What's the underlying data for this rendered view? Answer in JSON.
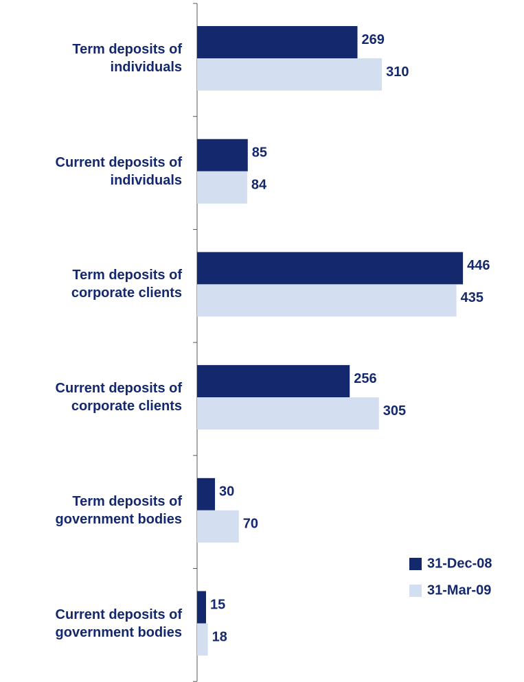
{
  "chart_data": {
    "type": "hbar",
    "categories": [
      "Term deposits of individuals",
      "Current deposits of individuals",
      "Term deposits of corporate clients",
      "Current deposits of corporate clients",
      "Term deposits of government bodies",
      "Current deposits of government bodies"
    ],
    "series": [
      {
        "name": "31-Dec-08",
        "color": "#14286e",
        "values": [
          269,
          85,
          446,
          256,
          30,
          15
        ]
      },
      {
        "name": "31-Mar-09",
        "color": "#d3dff0",
        "values": [
          310,
          84,
          435,
          305,
          70,
          18
        ]
      }
    ],
    "legend": "lower right"
  }
}
